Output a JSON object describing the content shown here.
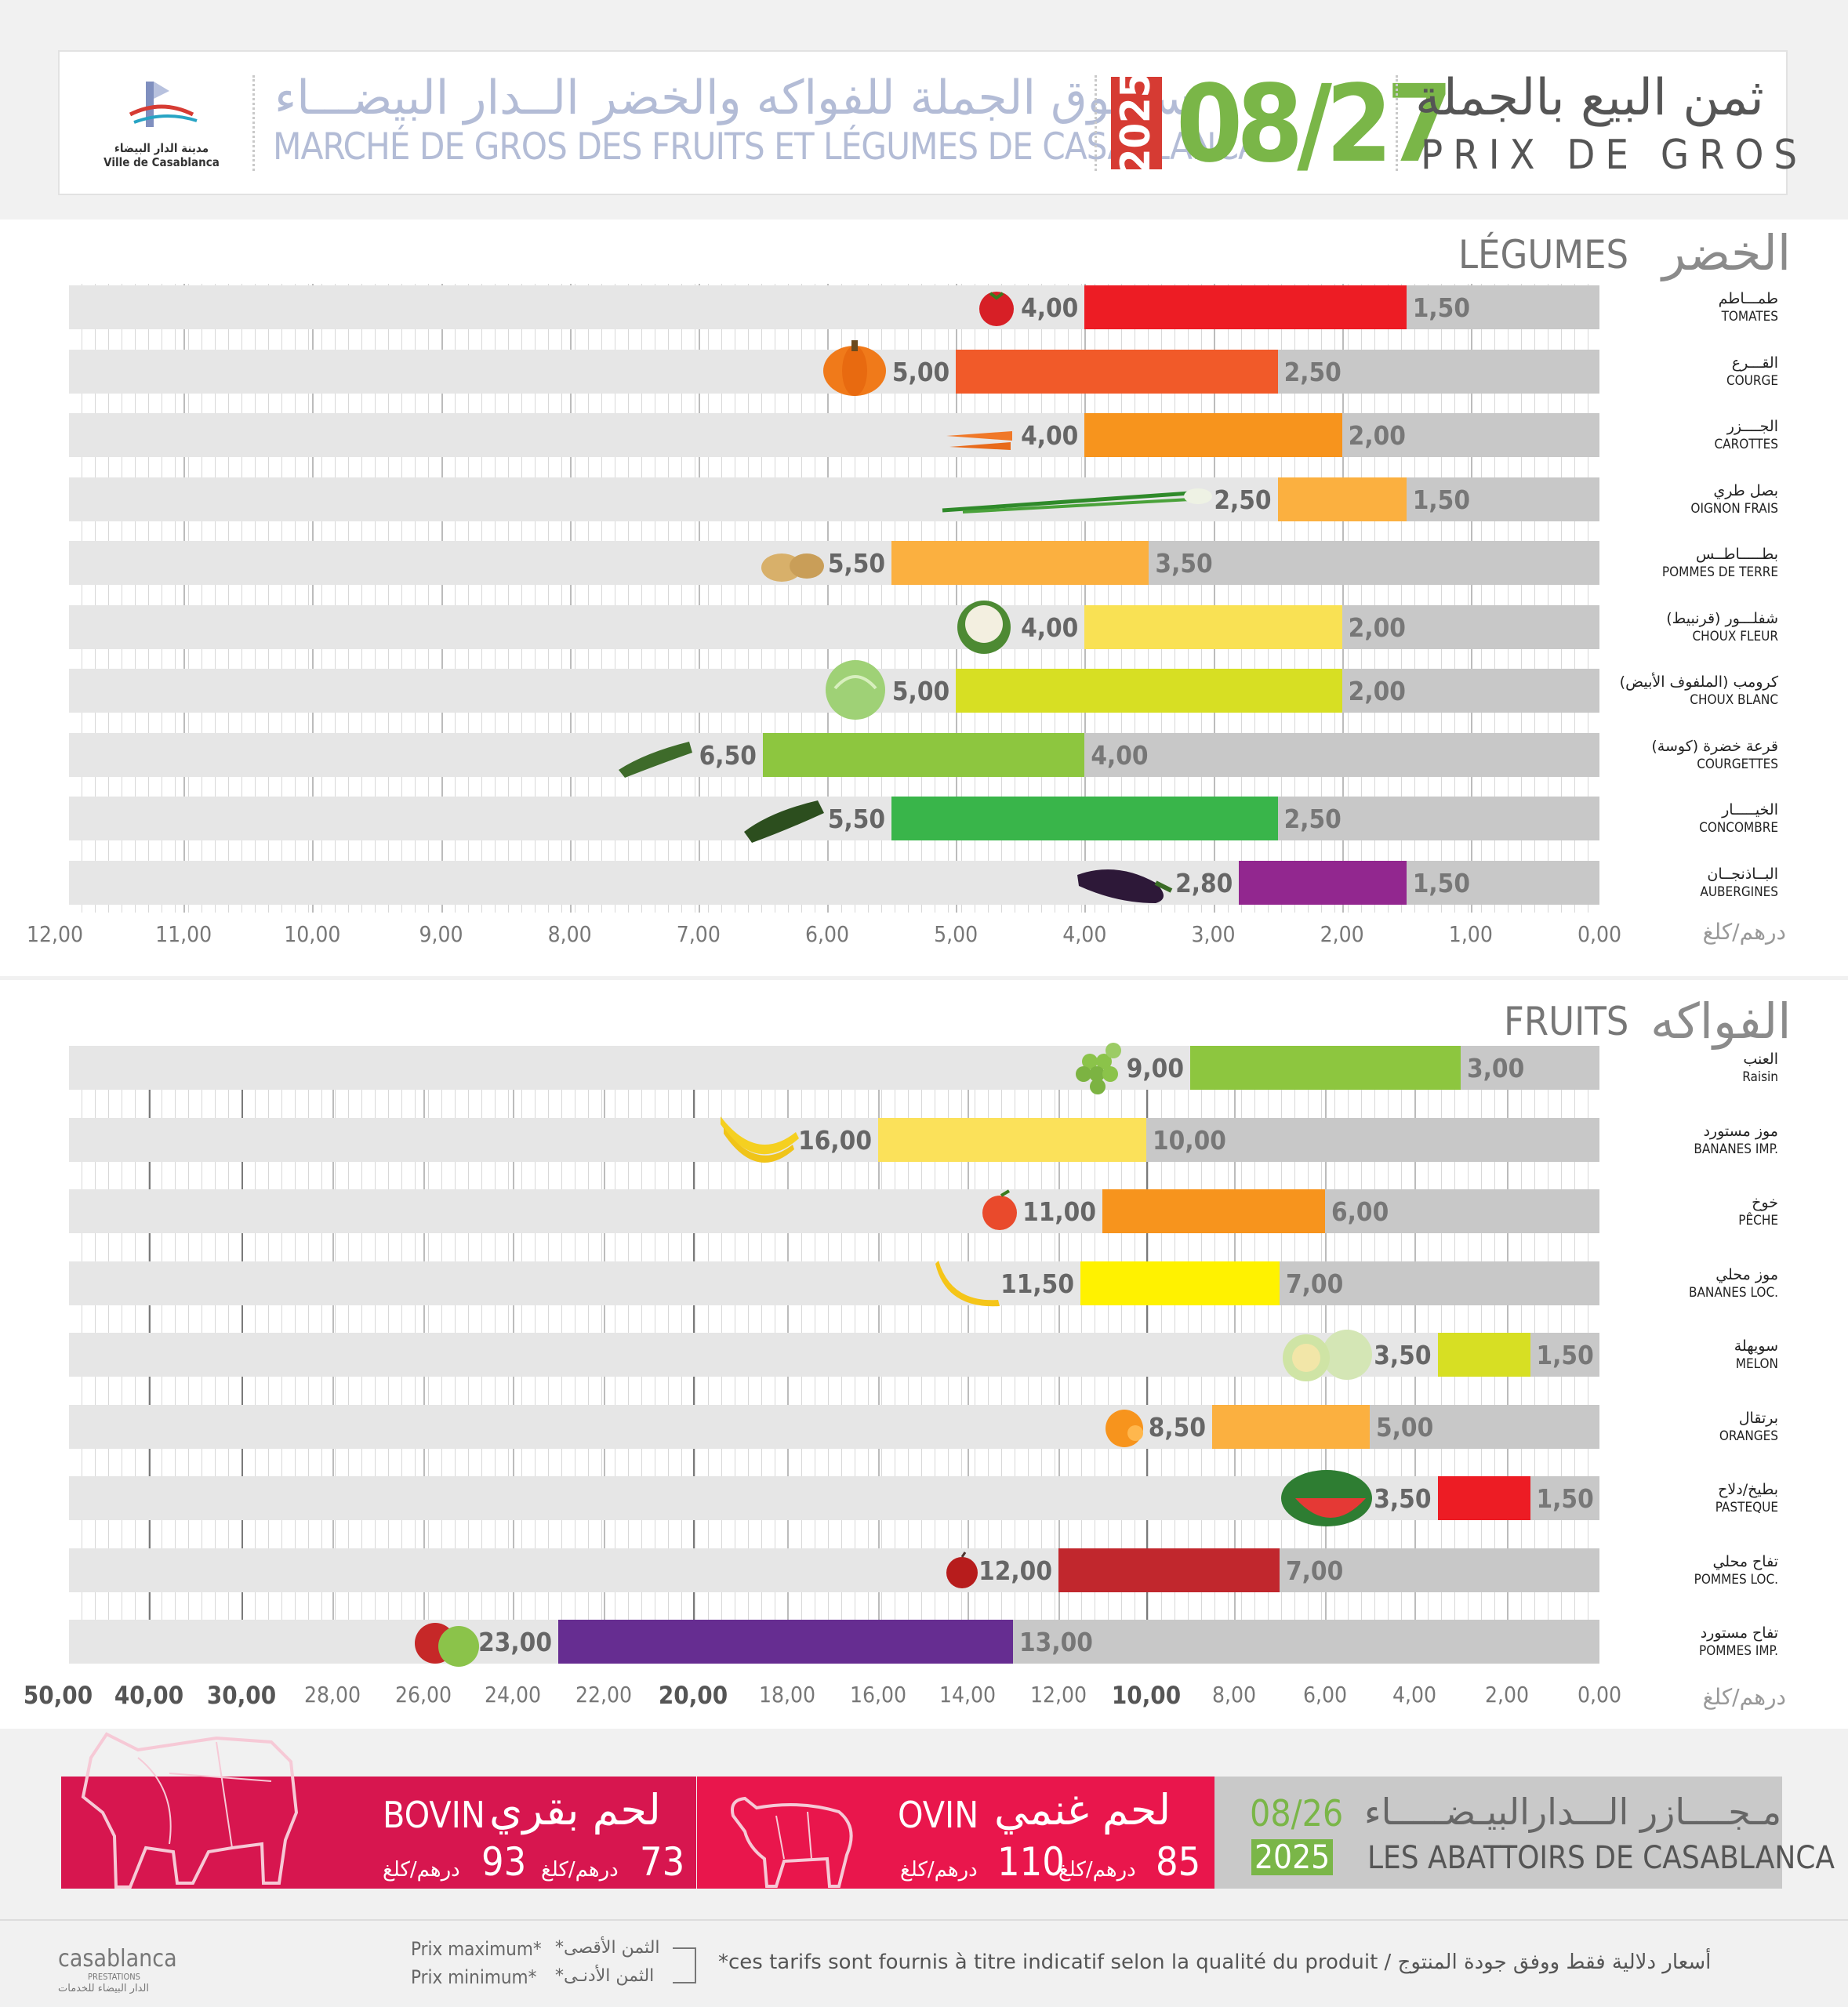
{
  "header": {
    "logo_ar": "مدينة الدار البيضاء",
    "logo_fr": "Ville de Casablanca",
    "market_ar": "ســـوق الجملة للفواكه والخضر الــدار البيضـــاء",
    "market_fr": "MARCHÉ DE GROS DES FRUITS ET LÉGUMES DE CASABLANCA",
    "year": "2025",
    "date": "08/27",
    "prix_ar": "ثمن البيع بالجملة",
    "prix_fr": "PRIX DE GROS"
  },
  "colors": {
    "tomatoes": "#ed1c24",
    "courge": "#f15a29",
    "carottes": "#f7941d",
    "oignon": "#fbb040",
    "pdt": "#fbb040",
    "choux_fleur": "#f9e154",
    "choux_blanc": "#d7df23",
    "courgettes": "#8dc63f",
    "concombre": "#39b54a",
    "aubergines": "#92278f",
    "bar_min": "#c8c8c8",
    "raisin": "#8dc63f",
    "bananes_imp": "#fbe15a",
    "peche": "#f7941d",
    "bananes_loc": "#fff200",
    "melon": "#d7df23",
    "oranges": "#fbb040",
    "pasteque": "#ed1c24",
    "pommes_loc": "#c1272d",
    "pommes_imp": "#662d91",
    "bovin": "#d7164f",
    "ovin": "#e9164c",
    "abattoirs": "#c8c8c8",
    "accent_green": "#7ab648"
  },
  "chart_data": [
    {
      "type": "bar",
      "title_ar": "الخضر",
      "title_fr": "LÉGUMES",
      "unit": "درهم/كلغ",
      "xlim": [
        0,
        12
      ],
      "x_reversed": true,
      "x_ticks": [
        "12,00",
        "11,00",
        "10,00",
        "9,00",
        "8,00",
        "7,00",
        "6,00",
        "5,00",
        "4,00",
        "3,00",
        "2,00",
        "1,00",
        "0,00"
      ],
      "categories": [
        {
          "ar": "طمـــاطم",
          "fr": "TOMATES",
          "max": 4.0,
          "min": 1.5,
          "max_label": "4,00",
          "min_label": "1,50",
          "color": "tomatoes",
          "icon": "tomato-icon"
        },
        {
          "ar": "القـــرع",
          "fr": "COURGE",
          "max": 5.0,
          "min": 2.5,
          "max_label": "5,00",
          "min_label": "2,50",
          "color": "courge",
          "icon": "pumpkin-icon"
        },
        {
          "ar": "الجــــزر",
          "fr": "CAROTTES",
          "max": 4.0,
          "min": 2.0,
          "max_label": "4,00",
          "min_label": "2,00",
          "color": "carottes",
          "icon": "carrot-icon"
        },
        {
          "ar": "بصل طري",
          "fr": "OIGNON FRAIS",
          "max": 2.5,
          "min": 1.5,
          "max_label": "2,50",
          "min_label": "1,50",
          "color": "oignon",
          "icon": "spring-onion-icon"
        },
        {
          "ar": "بطـــــاطــس",
          "fr": "POMMES DE TERRE",
          "max": 5.5,
          "min": 3.5,
          "max_label": "5,50",
          "min_label": "3,50",
          "color": "pdt",
          "icon": "potato-icon"
        },
        {
          "ar": "شفلـــور (قرنبيط)",
          "fr": "CHOUX FLEUR",
          "max": 4.0,
          "min": 2.0,
          "max_label": "4,00",
          "min_label": "2,00",
          "color": "choux_fleur",
          "icon": "cauliflower-icon"
        },
        {
          "ar": "كرومب (الملفوف الأبيض)",
          "fr": "CHOUX BLANC",
          "max": 5.0,
          "min": 2.0,
          "max_label": "5,00",
          "min_label": "2,00",
          "color": "choux_blanc",
          "icon": "cabbage-icon"
        },
        {
          "ar": "قرعة خضرة (كوسة)",
          "fr": "COURGETTES",
          "max": 6.5,
          "min": 4.0,
          "max_label": "6,50",
          "min_label": "4,00",
          "color": "courgettes",
          "icon": "zucchini-icon"
        },
        {
          "ar": "الخيـــــار",
          "fr": "CONCOMBRE",
          "max": 5.5,
          "min": 2.5,
          "max_label": "5,50",
          "min_label": "2,50",
          "color": "concombre",
          "icon": "cucumber-icon"
        },
        {
          "ar": "البــاذنجــان",
          "fr": "AUBERGINES",
          "max": 2.8,
          "min": 1.5,
          "max_label": "2,80",
          "min_label": "1,50",
          "color": "aubergines",
          "icon": "eggplant-icon"
        }
      ]
    },
    {
      "type": "bar",
      "title_ar": "الفواكه",
      "title_fr": "FRUITS",
      "unit": "درهم/كلغ",
      "x_reversed": true,
      "x_scale": "piecewise",
      "x_ticks": [
        "50,00",
        "40,00",
        "30,00",
        "28,00",
        "26,00",
        "24,00",
        "22,00",
        "20,00",
        "18,00",
        "16,00",
        "14,00",
        "12,00",
        "10,00",
        "8,00",
        "6,00",
        "4,00",
        "2,00",
        "0,00"
      ],
      "x_ticks_bold": [
        "50,00",
        "40,00",
        "30,00",
        "20,00",
        "10,00"
      ],
      "categories": [
        {
          "ar": "العنب",
          "fr": "Raisin",
          "max": 9.0,
          "min": 3.0,
          "max_label": "9,00",
          "min_label": "3,00",
          "color": "raisin",
          "icon": "grapes-icon"
        },
        {
          "ar": "موز مستورد",
          "fr": "BANANES IMP.",
          "max": 16.0,
          "min": 10.0,
          "max_label": "16,00",
          "min_label": "10,00",
          "color": "bananes_imp",
          "icon": "banana-bunch-icon"
        },
        {
          "ar": "خوخ",
          "fr": "PÊCHE",
          "max": 11.0,
          "min": 6.0,
          "max_label": "11,00",
          "min_label": "6,00",
          "color": "peche",
          "icon": "peach-icon"
        },
        {
          "ar": "موز محلي",
          "fr": "BANANES LOC.",
          "max": 11.5,
          "min": 7.0,
          "max_label": "11,50",
          "min_label": "7,00",
          "color": "bananes_loc",
          "icon": "banana-icon"
        },
        {
          "ar": "سويهلة",
          "fr": "MELON",
          "max": 3.5,
          "min": 1.5,
          "max_label": "3,50",
          "min_label": "1,50",
          "color": "melon",
          "icon": "melon-icon"
        },
        {
          "ar": "برتقال",
          "fr": "ORANGES",
          "max": 8.5,
          "min": 5.0,
          "max_label": "8,50",
          "min_label": "5,00",
          "color": "oranges",
          "icon": "orange-icon"
        },
        {
          "ar": "بطيخ/دلاح",
          "fr": "PASTEQUE",
          "max": 3.5,
          "min": 1.5,
          "max_label": "3,50",
          "min_label": "1,50",
          "color": "pasteque",
          "icon": "watermelon-icon"
        },
        {
          "ar": "تفاح محلي",
          "fr": "POMMES LOC.",
          "max": 12.0,
          "min": 7.0,
          "max_label": "12,00",
          "min_label": "7,00",
          "color": "pommes_loc",
          "icon": "apple-red-icon"
        },
        {
          "ar": "تفاح مستورد",
          "fr": "POMMES IMP.",
          "max": 23.0,
          "min": 13.0,
          "max_label": "23,00",
          "min_label": "13,00",
          "color": "pommes_imp",
          "icon": "apples-icon"
        }
      ]
    }
  ],
  "meat": {
    "bovin": {
      "fr": "BOVIN",
      "ar": "لحم بقري",
      "max": "93",
      "min": "73",
      "unit": "درهم/كلغ"
    },
    "ovin": {
      "fr": "OVIN",
      "ar": "لحم غنمي",
      "max": "110",
      "min": "85",
      "unit": "درهم/كلغ"
    },
    "abattoirs": {
      "ar": "مـجــــازر الـــدارالبيـضـــــاء",
      "fr": "LES ABATTOIRS DE CASABLANCA",
      "date": "08/26",
      "year": "2025"
    }
  },
  "footer": {
    "brand": "casablanca",
    "brand_sub": "PRESTATIONS",
    "brand_ar": "الدار البيضاء للخدمات",
    "prix_max_fr": "Prix maximum*",
    "prix_min_fr": "Prix minimum*",
    "prix_max_ar": "*الثمن الأقصى",
    "prix_min_ar": "*الثمن الأدنـى",
    "note": "*ces tarifs sont fournis à titre indicatif selon la qualité du produit  /  أسعار دلالية فقط ووفق جودة المنتوج"
  }
}
